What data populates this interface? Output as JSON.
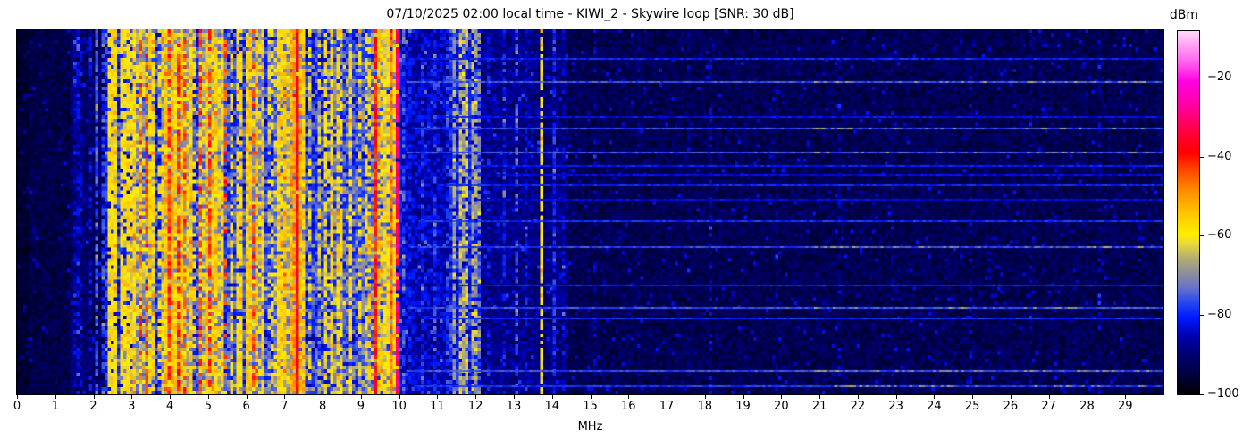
{
  "title": "07/10/2025 02:00 local time - KIWI_2 - Skywire loop [SNR: 30 dB]",
  "xlabel": "MHz",
  "x_ticks": [
    "0",
    "1",
    "2",
    "3",
    "4",
    "5",
    "6",
    "7",
    "8",
    "9",
    "10",
    "11",
    "12",
    "13",
    "14",
    "15",
    "16",
    "17",
    "18",
    "19",
    "20",
    "21",
    "22",
    "23",
    "24",
    "25",
    "26",
    "27",
    "28",
    "29"
  ],
  "colorbar": {
    "title": "dBm",
    "tick_labels": [
      "−20",
      "−40",
      "−60",
      "−80",
      "−100"
    ],
    "tick_values": [
      -20,
      -40,
      -60,
      -80,
      -100
    ]
  },
  "chart_data": {
    "type": "heatmap",
    "title": "07/10/2025 02:00 local time - KIWI_2 - Skywire loop [SNR: 30 dB]",
    "xlabel": "MHz",
    "ylabel": "",
    "x_range": [
      0,
      30
    ],
    "y_axis": "time (no ticks shown)",
    "value_label": "dBm",
    "value_range": [
      -100,
      -8.3
    ],
    "grid": {
      "cols": 366,
      "rows": 102
    },
    "seed": 1337,
    "colormap_stops": [
      [
        0.0,
        "#000000"
      ],
      [
        0.055,
        "#000040"
      ],
      [
        0.1,
        "#000066"
      ],
      [
        0.155,
        "#0000a8"
      ],
      [
        0.21,
        "#0018ff"
      ],
      [
        0.25,
        "#2244ee"
      ],
      [
        0.295,
        "#6b74c8"
      ],
      [
        0.335,
        "#8f8f9a"
      ],
      [
        0.375,
        "#b3ad72"
      ],
      [
        0.415,
        "#e8d83a"
      ],
      [
        0.44,
        "#ffee00"
      ],
      [
        0.5,
        "#ffc400"
      ],
      [
        0.565,
        "#ff8800"
      ],
      [
        0.625,
        "#ff3c00"
      ],
      [
        0.665,
        "#ff0000"
      ],
      [
        0.73,
        "#ff0048"
      ],
      [
        0.8,
        "#ff00a8"
      ],
      [
        0.86,
        "#ff00e0"
      ],
      [
        0.92,
        "#ff6aee"
      ],
      [
        1.0,
        "#ffd8fa"
      ]
    ],
    "noise_bands_format": [
      "f0_mhz",
      "f1_mhz",
      "base_dbm",
      "noise_amp_db"
    ],
    "noise_bands": [
      [
        0.0,
        0.35,
        -96,
        2
      ],
      [
        0.35,
        1.4,
        -94,
        3
      ],
      [
        1.4,
        1.7,
        -90,
        4
      ],
      [
        1.7,
        2.33,
        -91,
        4
      ],
      [
        2.33,
        2.62,
        -81,
        7
      ],
      [
        2.62,
        3.0,
        -77,
        8
      ],
      [
        3.0,
        3.6,
        -68,
        9
      ],
      [
        3.6,
        3.78,
        -78,
        8
      ],
      [
        3.78,
        4.55,
        -64,
        9
      ],
      [
        4.55,
        4.73,
        -77,
        8
      ],
      [
        4.73,
        5.45,
        -65,
        9
      ],
      [
        5.45,
        5.95,
        -76,
        8
      ],
      [
        5.95,
        6.45,
        -67,
        9
      ],
      [
        6.45,
        6.72,
        -77,
        7
      ],
      [
        6.72,
        7.06,
        -69,
        9
      ],
      [
        7.06,
        7.58,
        -65,
        9
      ],
      [
        7.58,
        8.16,
        -77,
        8
      ],
      [
        8.16,
        8.56,
        -72,
        9
      ],
      [
        8.56,
        9.05,
        -75,
        8
      ],
      [
        9.05,
        9.28,
        -73,
        8
      ],
      [
        9.28,
        9.95,
        -70,
        9
      ],
      [
        9.95,
        10.35,
        -83,
        5
      ],
      [
        10.35,
        11.35,
        -85,
        5
      ],
      [
        11.35,
        12.1,
        -80,
        7
      ],
      [
        12.1,
        13.55,
        -88,
        4
      ],
      [
        13.55,
        14.4,
        -89,
        4
      ],
      [
        14.4,
        30.0,
        -93,
        3.5
      ]
    ],
    "signal_lines_format": [
      "f_mhz",
      "dbm",
      "duty"
    ],
    "signal_lines": [
      [
        1.48,
        -86,
        0.7
      ],
      [
        1.56,
        -84,
        0.8
      ],
      [
        1.63,
        -86,
        0.5
      ],
      [
        1.92,
        -84,
        0.5
      ],
      [
        2.06,
        -76,
        0.7
      ],
      [
        2.2,
        -78,
        0.6
      ],
      [
        2.38,
        -60,
        0.85
      ],
      [
        2.45,
        -58,
        0.9
      ],
      [
        2.52,
        -60,
        0.8
      ],
      [
        2.58,
        -62,
        0.7
      ],
      [
        2.68,
        -58,
        0.8
      ],
      [
        2.78,
        -60,
        0.7
      ],
      [
        2.88,
        -57,
        0.8
      ],
      [
        2.97,
        -61,
        0.7
      ],
      [
        3.07,
        -56,
        0.8
      ],
      [
        3.16,
        -44,
        0.5
      ],
      [
        3.22,
        -55,
        0.8
      ],
      [
        3.33,
        -45,
        0.6
      ],
      [
        3.42,
        -56,
        0.7
      ],
      [
        3.52,
        -58,
        0.7
      ],
      [
        3.65,
        -60,
        0.5
      ],
      [
        3.82,
        -55,
        0.8
      ],
      [
        3.9,
        -43,
        0.6
      ],
      [
        3.98,
        -54,
        0.8
      ],
      [
        4.07,
        -56,
        0.7
      ],
      [
        4.2,
        -42,
        0.65
      ],
      [
        4.28,
        -54,
        0.8
      ],
      [
        4.38,
        -44,
        0.5
      ],
      [
        4.47,
        -56,
        0.7
      ],
      [
        4.62,
        -60,
        0.4
      ],
      [
        4.78,
        -44,
        0.6
      ],
      [
        4.88,
        -54,
        0.8
      ],
      [
        4.98,
        -43,
        0.6
      ],
      [
        5.08,
        -55,
        0.7
      ],
      [
        5.2,
        -56,
        0.7
      ],
      [
        5.32,
        -57,
        0.7
      ],
      [
        5.4,
        -45,
        0.4
      ],
      [
        5.55,
        -60,
        0.6
      ],
      [
        5.7,
        -58,
        0.7
      ],
      [
        5.85,
        -57,
        0.7
      ],
      [
        6.0,
        -56,
        0.8
      ],
      [
        6.08,
        -55,
        0.8
      ],
      [
        6.18,
        -44,
        0.5
      ],
      [
        6.27,
        -54,
        0.8
      ],
      [
        6.36,
        -56,
        0.7
      ],
      [
        6.55,
        -62,
        0.5
      ],
      [
        6.64,
        -60,
        0.5
      ],
      [
        6.78,
        -56,
        0.8
      ],
      [
        6.88,
        -57,
        0.7
      ],
      [
        6.98,
        -55,
        0.8
      ],
      [
        7.12,
        -52,
        0.8
      ],
      [
        7.2,
        -50,
        0.8
      ],
      [
        7.28,
        -38,
        0.95
      ],
      [
        7.36,
        -54,
        0.8
      ],
      [
        7.46,
        -56,
        0.7
      ],
      [
        7.65,
        -62,
        0.5
      ],
      [
        7.85,
        -63,
        0.5
      ],
      [
        8.0,
        -60,
        0.6
      ],
      [
        8.1,
        -64,
        0.4
      ],
      [
        8.22,
        -58,
        0.7
      ],
      [
        8.32,
        -57,
        0.7
      ],
      [
        8.45,
        -59,
        0.6
      ],
      [
        8.7,
        -58,
        0.6
      ],
      [
        8.9,
        -60,
        0.5
      ],
      [
        9.1,
        -60,
        0.5
      ],
      [
        9.2,
        -58,
        0.5
      ],
      [
        9.31,
        -40,
        0.9
      ],
      [
        9.42,
        -55,
        0.7
      ],
      [
        9.52,
        -56,
        0.6
      ],
      [
        9.6,
        -62,
        0.8
      ],
      [
        9.68,
        -60,
        0.8
      ],
      [
        9.75,
        -48,
        0.85
      ],
      [
        9.82,
        -58,
        0.7
      ],
      [
        9.88,
        -30,
        0.9
      ],
      [
        9.93,
        -55,
        0.6
      ],
      [
        10.05,
        -75,
        0.5
      ],
      [
        10.6,
        -80,
        0.5
      ],
      [
        10.9,
        -79,
        0.5
      ],
      [
        11.2,
        -78,
        0.5
      ],
      [
        11.42,
        -68,
        0.7
      ],
      [
        11.55,
        -65,
        0.7
      ],
      [
        11.65,
        -67,
        0.7
      ],
      [
        11.75,
        -64,
        0.75
      ],
      [
        11.87,
        -66,
        0.6
      ],
      [
        11.97,
        -68,
        0.6
      ],
      [
        12.06,
        -70,
        0.5
      ],
      [
        12.3,
        -82,
        0.4
      ],
      [
        12.68,
        -80,
        0.5
      ],
      [
        13.0,
        -76,
        0.5
      ],
      [
        13.3,
        -83,
        0.4
      ],
      [
        13.68,
        -60,
        0.85
      ],
      [
        14.0,
        -80,
        0.6
      ],
      [
        14.25,
        -84,
        0.4
      ],
      [
        15.05,
        -86,
        0.4
      ],
      [
        16.2,
        -88,
        0.3
      ],
      [
        17.5,
        -88,
        0.3
      ],
      [
        18.1,
        -86,
        0.35
      ],
      [
        19.8,
        -87,
        0.3
      ],
      [
        21.45,
        -86,
        0.35
      ],
      [
        22.9,
        -88,
        0.3
      ],
      [
        24.9,
        -86,
        0.35
      ],
      [
        26.5,
        -88,
        0.3
      ],
      [
        28.3,
        -87,
        0.3
      ]
    ],
    "event_lines_format": [
      "t_frac_of_height",
      "f0_mhz",
      "f1_mhz",
      "peak_dbm",
      "bright"
    ],
    "event_lines": [
      [
        0.078,
        10.3,
        30,
        -80,
        false
      ],
      [
        0.142,
        10.2,
        30,
        -76,
        true
      ],
      [
        0.238,
        11.0,
        30,
        -82,
        false
      ],
      [
        0.27,
        10.4,
        30,
        -77,
        true
      ],
      [
        0.336,
        10.2,
        30,
        -76,
        true
      ],
      [
        0.373,
        12.0,
        30,
        -81,
        false
      ],
      [
        0.397,
        12.5,
        30,
        -83,
        false
      ],
      [
        0.424,
        11.0,
        30,
        -80,
        false
      ],
      [
        0.466,
        12.0,
        30,
        -83,
        false
      ],
      [
        0.527,
        10.5,
        30,
        -79,
        false
      ],
      [
        0.596,
        10.3,
        30,
        -77,
        true
      ],
      [
        0.703,
        11.5,
        30,
        -81,
        false
      ],
      [
        0.765,
        10.2,
        30,
        -76,
        true
      ],
      [
        0.794,
        10.8,
        30,
        -79,
        false
      ],
      [
        0.938,
        10.2,
        30,
        -76,
        true
      ],
      [
        0.98,
        10.4,
        30,
        -78,
        true
      ]
    ],
    "bright_zones_mhz": [
      [
        20.8,
        25.3
      ],
      [
        26.3,
        29.6
      ]
    ]
  }
}
